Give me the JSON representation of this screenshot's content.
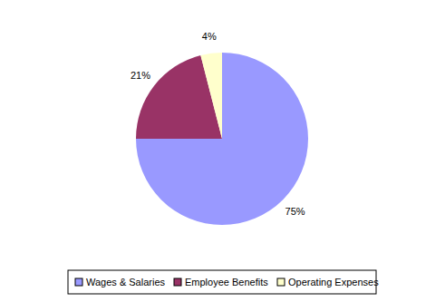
{
  "chart_data": {
    "type": "pie",
    "categories": [
      "Wages & Salaries",
      "Employee Benefits",
      "Operating Expenses"
    ],
    "values": [
      75,
      21,
      4
    ],
    "value_labels": [
      "75%",
      "21%",
      "4%"
    ],
    "colors": [
      "#9999ff",
      "#993366",
      "#ffffcc"
    ],
    "data_labels": true,
    "legend": "bottom"
  }
}
